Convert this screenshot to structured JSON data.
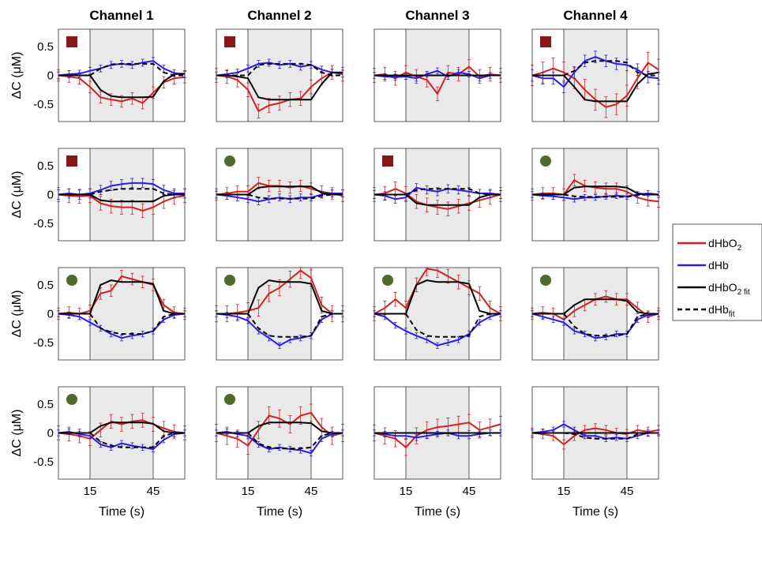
{
  "chart_data": {
    "type": "line",
    "grid": false,
    "columns": [
      "Channel 1",
      "Channel 2",
      "Channel 3",
      "Channel 4"
    ],
    "ylabel": "ΔC (μM)",
    "xlabel": "Time (s)",
    "xticks": [
      15,
      45
    ],
    "yticks": [
      0.5,
      0,
      -0.5
    ],
    "xlim": [
      0,
      60
    ],
    "ylim": [
      -0.8,
      0.8
    ],
    "stimulus_window": [
      15,
      45
    ],
    "x": [
      0,
      5,
      10,
      15,
      20,
      25,
      30,
      35,
      40,
      45,
      50,
      55,
      60
    ],
    "legend": {
      "placement": "right",
      "entries": [
        {
          "key": "dHbO2",
          "label": "dHbO",
          "sub": "2",
          "color": "#d42020",
          "dash": false
        },
        {
          "key": "dHb",
          "label": "dHb",
          "sub": "",
          "color": "#2a1aee",
          "dash": false
        },
        {
          "key": "dHbO2_fit",
          "label": "dHbO",
          "sub": "2 fit",
          "color": "#000000",
          "dash": false
        },
        {
          "key": "dHb_fit",
          "label": "dHb",
          "sub": "fit",
          "color": "#000000",
          "dash": true
        }
      ]
    },
    "marker_colors": {
      "square": "#8b1515",
      "circle": "#4d6b2a"
    },
    "panels": [
      {
        "row": 1,
        "col": 1,
        "marker": "square",
        "dHbO2": [
          0,
          -0.02,
          -0.05,
          -0.2,
          -0.38,
          -0.42,
          -0.45,
          -0.4,
          -0.48,
          -0.3,
          -0.12,
          -0.05,
          -0.03
        ],
        "dHb": [
          0,
          0.02,
          0.03,
          0.08,
          0.12,
          0.18,
          0.2,
          0.18,
          0.22,
          0.25,
          0.12,
          0.04,
          0.02
        ],
        "dHbO2_fit": [
          0,
          0,
          0,
          0,
          -0.25,
          -0.36,
          -0.38,
          -0.38,
          -0.38,
          -0.37,
          -0.1,
          0.02,
          0.03
        ],
        "dHb_fit": [
          0,
          0,
          0,
          0,
          0.12,
          0.19,
          0.2,
          0.2,
          0.2,
          0.2,
          0.05,
          0,
          0
        ],
        "err_red": 0.1,
        "err_blue": 0.06
      },
      {
        "row": 1,
        "col": 2,
        "marker": "square",
        "dHbO2": [
          0,
          -0.02,
          -0.08,
          -0.25,
          -0.62,
          -0.52,
          -0.48,
          -0.42,
          -0.4,
          -0.2,
          -0.05,
          0.05,
          0.02
        ],
        "dHb": [
          0,
          0.02,
          0.05,
          0.12,
          0.2,
          0.22,
          0.18,
          0.2,
          0.15,
          0.18,
          0.1,
          0.05,
          0.03
        ],
        "dHbO2_fit": [
          0,
          0,
          -0.02,
          -0.05,
          -0.38,
          -0.42,
          -0.42,
          -0.42,
          -0.42,
          -0.42,
          -0.15,
          0.05,
          0.05
        ],
        "dHb_fit": [
          0,
          0,
          0,
          0,
          0.18,
          0.2,
          0.2,
          0.2,
          0.2,
          0.18,
          0.05,
          0,
          0
        ],
        "err_red": 0.12,
        "err_blue": 0.06
      },
      {
        "row": 1,
        "col": 3,
        "marker": "none",
        "dHbO2": [
          0,
          0.02,
          -0.05,
          0.05,
          -0.02,
          -0.08,
          -0.32,
          0.05,
          0.02,
          0.15,
          -0.02,
          0.02,
          0
        ],
        "dHb": [
          0,
          -0.02,
          -0.03,
          -0.02,
          -0.05,
          0.02,
          0.08,
          -0.02,
          0.05,
          0.02,
          -0.05,
          0,
          0
        ],
        "dHbO2_fit": [
          0,
          0,
          0,
          0,
          0,
          0,
          0,
          0,
          0,
          0,
          0,
          0,
          0
        ],
        "dHb_fit": [
          0,
          0,
          0,
          0,
          0,
          0,
          0,
          0,
          0,
          0,
          0,
          0,
          0
        ],
        "err_red": 0.12,
        "err_blue": 0.05
      },
      {
        "row": 1,
        "col": 4,
        "marker": "square",
        "dHbO2": [
          0,
          0.05,
          0.12,
          0.05,
          -0.05,
          -0.25,
          -0.42,
          -0.55,
          -0.5,
          -0.35,
          -0.05,
          0.22,
          0.1
        ],
        "dHb": [
          0,
          -0.05,
          -0.05,
          -0.2,
          0.05,
          0.25,
          0.32,
          0.25,
          0.2,
          0.18,
          0.1,
          -0.03,
          -0.05
        ],
        "dHbO2_fit": [
          0,
          0,
          0,
          0,
          -0.2,
          -0.42,
          -0.45,
          -0.45,
          -0.45,
          -0.45,
          -0.15,
          0.02,
          0.05
        ],
        "dHb_fit": [
          0,
          0,
          0,
          0,
          0.08,
          0.22,
          0.25,
          0.25,
          0.25,
          0.22,
          0.05,
          0,
          0
        ],
        "err_red": 0.18,
        "err_blue": 0.1
      },
      {
        "row": 2,
        "col": 1,
        "marker": "square",
        "dHbO2": [
          0,
          -0.02,
          -0.03,
          -0.02,
          -0.15,
          -0.2,
          -0.22,
          -0.22,
          -0.28,
          -0.22,
          -0.12,
          -0.05,
          -0.02
        ],
        "dHb": [
          0,
          0.02,
          0.0,
          0.02,
          0.08,
          0.15,
          0.18,
          0.2,
          0.2,
          0.18,
          0.08,
          0.02,
          0.02
        ],
        "dHbO2_fit": [
          0,
          0,
          0,
          0,
          -0.1,
          -0.12,
          -0.12,
          -0.12,
          -0.12,
          -0.12,
          -0.02,
          0,
          0
        ],
        "dHb_fit": [
          0,
          0,
          0,
          0,
          0.05,
          0.08,
          0.1,
          0.1,
          0.1,
          0.1,
          0.02,
          0,
          0
        ],
        "err_red": 0.12,
        "err_blue": 0.08
      },
      {
        "row": 2,
        "col": 2,
        "marker": "circle",
        "dHbO2": [
          0,
          0.02,
          0.05,
          0.05,
          0.2,
          0.15,
          0.15,
          0.12,
          0.15,
          0.1,
          0.05,
          0.02,
          -0.02
        ],
        "dHb": [
          0,
          -0.02,
          -0.05,
          -0.08,
          -0.12,
          -0.08,
          -0.05,
          -0.08,
          -0.05,
          -0.05,
          0,
          0.02,
          0.02
        ],
        "dHbO2_fit": [
          0,
          0,
          0,
          0,
          0.12,
          0.14,
          0.14,
          0.14,
          0.14,
          0.14,
          0.03,
          0,
          0
        ],
        "dHb_fit": [
          0,
          0,
          0,
          0,
          -0.05,
          -0.07,
          -0.07,
          -0.07,
          -0.07,
          -0.07,
          -0.02,
          0,
          0
        ],
        "err_red": 0.1,
        "err_blue": 0.06
      },
      {
        "row": 2,
        "col": 3,
        "marker": "square",
        "dHbO2": [
          0,
          0.02,
          0.1,
          0.02,
          -0.12,
          -0.18,
          -0.22,
          -0.25,
          -0.2,
          -0.15,
          -0.1,
          -0.05,
          0
        ],
        "dHb": [
          0,
          -0.02,
          -0.08,
          -0.05,
          0.12,
          0.08,
          0.05,
          0.1,
          0.08,
          0.05,
          0.02,
          0.02,
          0
        ],
        "dHbO2_fit": [
          0,
          0,
          0,
          0,
          -0.15,
          -0.18,
          -0.18,
          -0.18,
          -0.18,
          -0.18,
          -0.05,
          0,
          0
        ],
        "dHb_fit": [
          0,
          0,
          0,
          0,
          0.08,
          0.1,
          0.1,
          0.1,
          0.1,
          0.1,
          0.02,
          0,
          0
        ],
        "err_red": 0.12,
        "err_blue": 0.07
      },
      {
        "row": 2,
        "col": 4,
        "marker": "circle",
        "dHbO2": [
          0,
          0.02,
          0.02,
          0.0,
          0.25,
          0.15,
          0.12,
          0.1,
          0.1,
          0.05,
          -0.05,
          -0.1,
          -0.12
        ],
        "dHb": [
          0,
          -0.02,
          -0.03,
          -0.05,
          -0.08,
          -0.05,
          -0.05,
          -0.03,
          -0.02,
          -0.03,
          0,
          0.02,
          0
        ],
        "dHbO2_fit": [
          0,
          0,
          0,
          0,
          0.12,
          0.14,
          0.14,
          0.14,
          0.14,
          0.12,
          0.02,
          0,
          0
        ],
        "dHb_fit": [
          0,
          0,
          0,
          0,
          -0.03,
          -0.04,
          -0.04,
          -0.04,
          -0.04,
          -0.04,
          -0.01,
          0,
          0
        ],
        "err_red": 0.1,
        "err_blue": 0.05
      },
      {
        "row": 3,
        "col": 1,
        "marker": "circle",
        "dHbO2": [
          0,
          0.02,
          0.0,
          0.05,
          0.35,
          0.4,
          0.65,
          0.6,
          0.55,
          0.5,
          0.15,
          0.02,
          0
        ],
        "dHb": [
          0,
          -0.02,
          -0.05,
          -0.15,
          -0.25,
          -0.35,
          -0.42,
          -0.38,
          -0.35,
          -0.3,
          -0.1,
          -0.02,
          0
        ],
        "dHbO2_fit": [
          0,
          0,
          0,
          0,
          0.5,
          0.58,
          0.55,
          0.55,
          0.55,
          0.52,
          0.05,
          0,
          0
        ],
        "dHb_fit": [
          0,
          0,
          0,
          0,
          -0.25,
          -0.32,
          -0.35,
          -0.35,
          -0.35,
          -0.3,
          -0.05,
          0,
          0
        ],
        "err_red": 0.1,
        "err_blue": 0.05
      },
      {
        "row": 3,
        "col": 2,
        "marker": "circle",
        "dHbO2": [
          0,
          0.0,
          0.02,
          0.05,
          0.1,
          0.35,
          0.45,
          0.6,
          0.75,
          0.62,
          0.15,
          0,
          0
        ],
        "dHb": [
          0,
          -0.02,
          -0.05,
          -0.12,
          -0.3,
          -0.42,
          -0.55,
          -0.45,
          -0.42,
          -0.38,
          -0.1,
          0,
          0
        ],
        "dHbO2_fit": [
          0,
          0,
          0,
          0,
          0.45,
          0.58,
          0.55,
          0.55,
          0.55,
          0.52,
          0.05,
          0,
          0
        ],
        "dHb_fit": [
          0,
          0,
          0,
          0,
          -0.25,
          -0.38,
          -0.4,
          -0.4,
          -0.4,
          -0.38,
          -0.05,
          0,
          0
        ],
        "err_red": 0.14,
        "err_blue": 0.05
      },
      {
        "row": 3,
        "col": 3,
        "marker": "circle",
        "dHbO2": [
          0,
          0.1,
          0.25,
          0.1,
          0.5,
          0.78,
          0.75,
          0.65,
          0.55,
          0.45,
          0.35,
          0.1,
          0
        ],
        "dHb": [
          0,
          -0.05,
          -0.2,
          -0.3,
          -0.38,
          -0.45,
          -0.55,
          -0.5,
          -0.45,
          -0.35,
          -0.15,
          -0.05,
          0
        ],
        "dHbO2_fit": [
          0,
          0,
          0,
          0,
          0.5,
          0.58,
          0.55,
          0.55,
          0.55,
          0.52,
          0.05,
          0,
          0
        ],
        "dHb_fit": [
          0,
          0,
          0,
          0,
          -0.28,
          -0.38,
          -0.4,
          -0.4,
          -0.4,
          -0.38,
          -0.05,
          0,
          0
        ],
        "err_red": 0.12,
        "err_blue": 0.05
      },
      {
        "row": 3,
        "col": 4,
        "marker": "circle",
        "dHbO2": [
          0,
          0.02,
          0.0,
          -0.1,
          0.05,
          0.15,
          0.25,
          0.3,
          0.25,
          0.25,
          0.1,
          -0.05,
          0
        ],
        "dHb": [
          0,
          -0.05,
          -0.1,
          -0.15,
          -0.3,
          -0.35,
          -0.42,
          -0.4,
          -0.35,
          -0.35,
          -0.1,
          -0.02,
          0
        ],
        "dHbO2_fit": [
          0,
          0,
          0,
          0,
          0.15,
          0.25,
          0.25,
          0.25,
          0.25,
          0.22,
          0.03,
          0,
          0
        ],
        "dHb_fit": [
          0,
          0,
          0,
          0,
          -0.22,
          -0.35,
          -0.38,
          -0.38,
          -0.38,
          -0.35,
          -0.05,
          0,
          0
        ],
        "err_red": 0.1,
        "err_blue": 0.05
      },
      {
        "row": 4,
        "col": 1,
        "marker": "circle",
        "dHbO2": [
          0,
          -0.02,
          -0.05,
          -0.1,
          0.05,
          0.2,
          0.15,
          0.2,
          0.22,
          0.15,
          0.08,
          0.02,
          0
        ],
        "dHb": [
          0,
          0.02,
          -0.02,
          -0.05,
          -0.2,
          -0.25,
          -0.18,
          -0.22,
          -0.25,
          -0.28,
          -0.12,
          -0.02,
          0
        ],
        "dHbO2_fit": [
          0,
          0,
          0,
          0,
          0.12,
          0.18,
          0.18,
          0.18,
          0.18,
          0.16,
          0.03,
          0,
          0
        ],
        "dHb_fit": [
          0,
          0,
          0,
          0,
          -0.15,
          -0.22,
          -0.25,
          -0.25,
          -0.25,
          -0.25,
          -0.05,
          0,
          0
        ],
        "err_red": 0.12,
        "err_blue": 0.05
      },
      {
        "row": 4,
        "col": 2,
        "marker": "circle",
        "dHbO2": [
          0,
          -0.05,
          -0.1,
          -0.22,
          0.05,
          0.3,
          0.25,
          0.15,
          0.3,
          0.35,
          0.1,
          -0.05,
          0
        ],
        "dHb": [
          0,
          0.02,
          -0.02,
          -0.05,
          -0.2,
          -0.28,
          -0.25,
          -0.28,
          -0.3,
          -0.35,
          -0.1,
          -0.02,
          0
        ],
        "dHbO2_fit": [
          0,
          0,
          0,
          0,
          0.12,
          0.18,
          0.18,
          0.18,
          0.18,
          0.17,
          0.03,
          0,
          0
        ],
        "dHb_fit": [
          0,
          0,
          0,
          0,
          -0.18,
          -0.25,
          -0.27,
          -0.27,
          -0.27,
          -0.25,
          -0.05,
          0,
          0
        ],
        "err_red": 0.15,
        "err_blue": 0.05
      },
      {
        "row": 4,
        "col": 3,
        "marker": "none",
        "dHbO2": [
          0,
          -0.05,
          -0.1,
          -0.25,
          -0.05,
          0.05,
          0.1,
          0.12,
          0.15,
          0.18,
          0.05,
          0.1,
          0.15
        ],
        "dHb": [
          0,
          -0.02,
          -0.05,
          -0.05,
          -0.08,
          -0.05,
          -0.02,
          0.0,
          -0.05,
          -0.05,
          -0.02,
          0,
          0
        ],
        "dHbO2_fit": [
          0,
          0,
          0,
          0,
          0,
          0,
          0,
          0,
          0,
          0,
          0,
          0,
          0
        ],
        "dHb_fit": [
          0,
          0,
          0,
          0,
          0,
          0,
          0,
          0,
          0,
          0,
          0,
          0,
          0
        ],
        "err_red": 0.14,
        "err_blue": 0.05
      },
      {
        "row": 4,
        "col": 4,
        "marker": "none",
        "dHbO2": [
          0,
          -0.02,
          -0.05,
          -0.2,
          -0.05,
          0.05,
          0.08,
          0.05,
          0.0,
          -0.02,
          0.05,
          0.02,
          0.05
        ],
        "dHb": [
          0,
          0.02,
          0.05,
          0.15,
          0.05,
          -0.05,
          -0.05,
          -0.1,
          -0.08,
          -0.1,
          -0.05,
          0,
          0
        ],
        "dHbO2_fit": [
          0,
          0,
          0,
          0,
          0,
          0,
          0,
          0,
          0,
          0,
          0,
          0,
          0
        ],
        "dHb_fit": [
          0,
          0,
          0,
          0,
          -0.02,
          -0.08,
          -0.1,
          -0.1,
          -0.1,
          -0.1,
          -0.02,
          0,
          0
        ],
        "err_red": 0.08,
        "err_blue": 0.05
      }
    ]
  }
}
